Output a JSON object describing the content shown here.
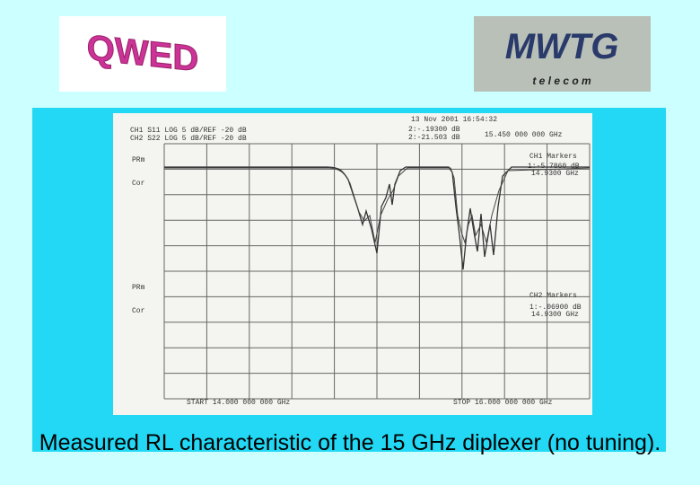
{
  "logos": {
    "left": "QWED",
    "right": "MWTG",
    "right_sub": "t e l e c o m"
  },
  "plot": {
    "header": [
      "CH1  S11   LOG     5 dB/REF  -20 dB",
      "CH2  S22   LOG     5 dB/REF  -20 dB"
    ],
    "timestamp": "13 Nov 2001    16:54:32",
    "marker_readouts": [
      "2:-.19300 dB",
      "2:-21.503 dB",
      "15.450 000 000 GHz"
    ],
    "left_labels": [
      "PRm",
      "Cor",
      "PRm",
      "Cor"
    ],
    "ch1_markers": {
      "title": "CH1 Markers",
      "lines": [
        "1:-5.7860 dB",
        "14.9300 GHz"
      ]
    },
    "ch2_markers": {
      "title": "CH2 Markers",
      "lines": [
        "1:-.06900 dB",
        "14.9300 GHz"
      ]
    },
    "start": "START 14.000 000 000 GHz",
    "stop": "STOP 16.000 000 000 GHz"
  },
  "caption": "Measured RL characteristic of the 15 GHz diplexer (no tuning)."
}
